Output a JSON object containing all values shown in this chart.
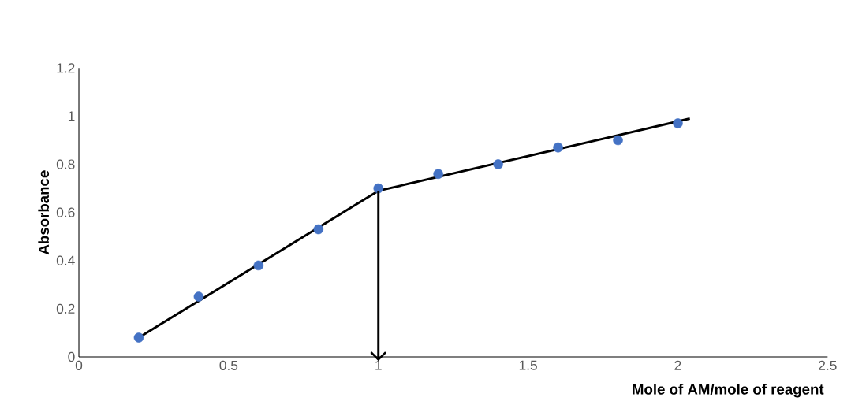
{
  "chart_data": {
    "type": "scatter",
    "xlabel": "Mole of  AM/mole of reagent",
    "ylabel": "Absorbance",
    "xlim": [
      0,
      2.5
    ],
    "xticks": [
      0,
      0.5,
      1,
      1.5,
      2,
      2.5
    ],
    "ylim": [
      0,
      1.2
    ],
    "yticks": [
      0,
      0.2,
      0.4,
      0.6,
      0.8,
      1,
      1.2
    ],
    "grid": false,
    "marker": "circle",
    "series": [
      {
        "color": "#4472c4",
        "x": [
          0.2,
          0.4,
          0.6,
          0.8,
          1.0,
          1.2,
          1.4,
          1.6,
          1.8,
          2.0
        ],
        "values": [
          0.08,
          0.25,
          0.38,
          0.53,
          0.7,
          0.76,
          0.8,
          0.87,
          0.9,
          0.97
        ]
      },
      {
        "type": "line",
        "marker": "none",
        "color": "#000000",
        "x": [
          0.2,
          1.0
        ],
        "values": [
          0.08,
          0.69
        ]
      },
      {
        "type": "line",
        "marker": "none",
        "color": "#000000",
        "x": [
          1.0,
          2.04
        ],
        "values": [
          0.69,
          0.99
        ]
      }
    ]
  }
}
